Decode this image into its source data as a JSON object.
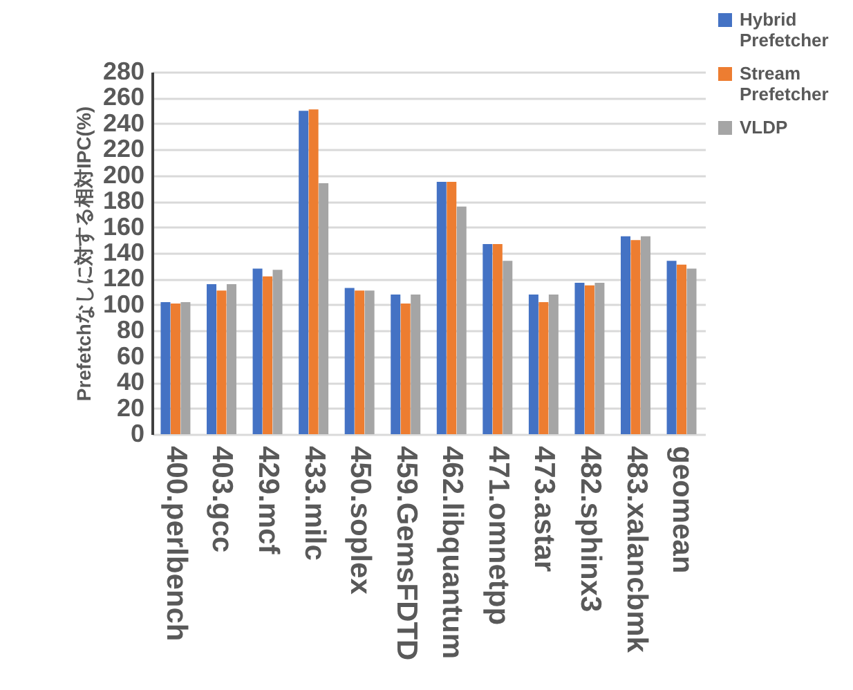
{
  "chart_data": {
    "type": "bar",
    "ylabel": "Prefetchなしに対する相対IPC(%)",
    "categories": [
      "400.perlbench",
      "403.gcc",
      "429.mcf",
      "433.milc",
      "450.soplex",
      "459.GemsFDTD",
      "462.libquantum",
      "471.omnetpp",
      "473.astar",
      "482.sphinx3",
      "483.xalancbmk",
      "geomean"
    ],
    "series": [
      {
        "name": "Hybrid Prefetcher",
        "color": "#4472c4",
        "values": [
          102,
          116,
          128,
          250,
          113,
          108,
          195,
          147,
          108,
          117,
          153,
          134
        ]
      },
      {
        "name": "Stream Prefetcher",
        "color": "#ed7d31",
        "values": [
          101,
          111,
          122,
          251,
          111,
          101,
          195,
          147,
          102,
          115,
          150,
          131
        ]
      },
      {
        "name": "VLDP",
        "color": "#a5a5a5",
        "values": [
          102,
          116,
          127,
          194,
          111,
          108,
          176,
          134,
          108,
          117,
          153,
          128
        ]
      }
    ],
    "ylim": [
      0,
      280
    ],
    "yticks": [
      0,
      20,
      40,
      60,
      80,
      100,
      120,
      140,
      160,
      180,
      200,
      220,
      240,
      260,
      280
    ],
    "grid": "y",
    "legend": "top right"
  }
}
